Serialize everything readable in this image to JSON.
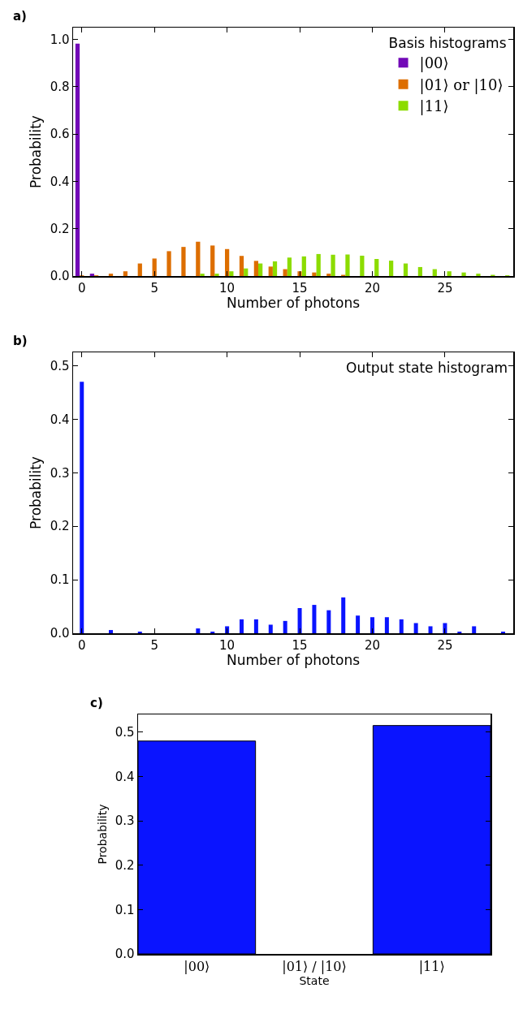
{
  "chart_data": [
    {
      "type": "bar",
      "annotations": [
        "a)"
      ],
      "xlabel": "Number of photons",
      "ylabel": "Probability",
      "legend_title": "Basis histograms",
      "legend": "top right",
      "x": [
        0,
        1,
        2,
        3,
        4,
        5,
        6,
        7,
        8,
        9,
        10,
        11,
        12,
        13,
        14,
        15,
        16,
        17,
        18,
        19,
        20,
        21,
        22,
        23,
        24,
        25,
        26,
        27,
        28,
        29
      ],
      "series": [
        {
          "name": "|00⟩",
          "color": "#7209b7",
          "values": [
            0.982,
            0.01,
            0,
            0,
            0,
            0,
            0,
            0,
            0,
            0,
            0,
            0,
            0,
            0,
            0,
            0,
            0,
            0,
            0,
            0,
            0,
            0,
            0,
            0,
            0,
            0,
            0,
            0,
            0,
            0
          ]
        },
        {
          "name": "|01⟩ or |10⟩",
          "color": "#dd6e00",
          "values": [
            0.003,
            0.003,
            0.01,
            0.02,
            0.053,
            0.074,
            0.105,
            0.123,
            0.145,
            0.129,
            0.114,
            0.085,
            0.064,
            0.04,
            0.029,
            0.02,
            0.015,
            0.01,
            0.005,
            0,
            0,
            0,
            0,
            0,
            0,
            0,
            0,
            0,
            0,
            0
          ]
        },
        {
          "name": "|11⟩",
          "color": "#8cdc00",
          "values": [
            0,
            0,
            0,
            0,
            0,
            0,
            0,
            0,
            0.01,
            0.01,
            0.02,
            0.032,
            0.053,
            0.062,
            0.078,
            0.083,
            0.093,
            0.09,
            0.091,
            0.086,
            0.072,
            0.065,
            0.053,
            0.038,
            0.029,
            0.02,
            0.015,
            0.01,
            0.005,
            0.003
          ]
        }
      ],
      "xlim": [
        -0.6,
        29.7
      ],
      "xticks": [
        0,
        5,
        10,
        15,
        20,
        25
      ],
      "ylim": [
        0,
        1.05
      ],
      "yticks": [
        {
          "value": 0,
          "label": "0.0"
        },
        {
          "value": 0.2,
          "label": "0.2"
        },
        {
          "value": 0.4,
          "label": "0.4"
        },
        {
          "value": 0.6,
          "label": "0.6"
        },
        {
          "value": 0.8,
          "label": "0.8"
        },
        {
          "value": 1,
          "label": "1.0"
        }
      ]
    },
    {
      "type": "bar",
      "annotations": [
        "b)",
        "Output state histogram"
      ],
      "xlabel": "Number of photons",
      "ylabel": "Probability",
      "x": [
        0,
        1,
        2,
        3,
        4,
        5,
        6,
        7,
        8,
        9,
        10,
        11,
        12,
        13,
        14,
        15,
        16,
        17,
        18,
        19,
        20,
        21,
        22,
        23,
        24,
        25,
        26,
        27,
        28,
        29
      ],
      "series": [
        {
          "color": "#0a14ff",
          "values": [
            0.47,
            0,
            0.006,
            0,
            0.003,
            0,
            0,
            0,
            0.009,
            0.003,
            0.013,
            0.026,
            0.026,
            0.016,
            0.023,
            0.047,
            0.053,
            0.043,
            0.067,
            0.033,
            0.03,
            0.03,
            0.026,
            0.019,
            0.013,
            0.019,
            0.003,
            0.013,
            0,
            0.003
          ]
        }
      ],
      "xlim": [
        -0.6,
        29.7
      ],
      "xticks": [
        0,
        5,
        10,
        15,
        20,
        25
      ],
      "ylim": [
        0,
        0.525
      ],
      "yticks": [
        {
          "value": 0,
          "label": "0.0"
        },
        {
          "value": 0.1,
          "label": "0.1"
        },
        {
          "value": 0.2,
          "label": "0.2"
        },
        {
          "value": 0.3,
          "label": "0.3"
        },
        {
          "value": 0.4,
          "label": "0.4"
        },
        {
          "value": 0.5,
          "label": "0.5"
        }
      ]
    },
    {
      "type": "bar",
      "annotations": [
        "c)"
      ],
      "xlabel": "State",
      "ylabel": "Probability",
      "categories": [
        "|00⟩",
        "|01⟩ / |10⟩",
        "|11⟩"
      ],
      "values": [
        0.48,
        0,
        0.515
      ],
      "color": "#0a14ff",
      "ylim": [
        0,
        0.54
      ],
      "yticks": [
        {
          "value": 0,
          "label": "0.0"
        },
        {
          "value": 0.1,
          "label": "0.1"
        },
        {
          "value": 0.2,
          "label": "0.2"
        },
        {
          "value": 0.3,
          "label": "0.3"
        },
        {
          "value": 0.4,
          "label": "0.4"
        },
        {
          "value": 0.5,
          "label": "0.5"
        }
      ]
    }
  ]
}
